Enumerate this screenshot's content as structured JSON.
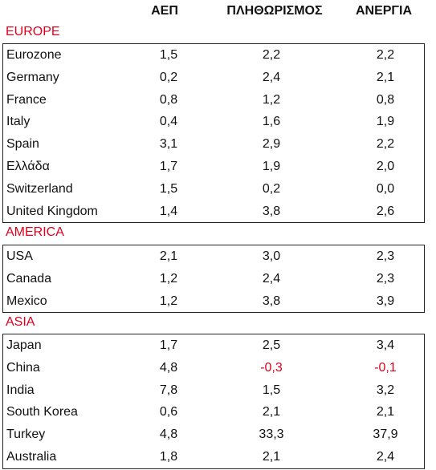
{
  "headers": [
    "ΑΕΠ",
    "ΠΛΗΘΩΡΙΣΜΟΣ",
    "ΑΝΕΡΓΙΑ"
  ],
  "colors": {
    "region_label": "#e0001b",
    "negative": "#e0001b",
    "border": "#222222"
  },
  "sections": [
    {
      "label": "EUROPE",
      "rows": [
        {
          "name": "Eurozone",
          "values": [
            "1,5",
            "2,2",
            "2,2"
          ]
        },
        {
          "name": "Germany",
          "values": [
            "0,2",
            "2,4",
            "2,1"
          ]
        },
        {
          "name": "France",
          "values": [
            "0,8",
            "1,2",
            "0,8"
          ]
        },
        {
          "name": "Italy",
          "values": [
            "0,4",
            "1,6",
            "1,9"
          ]
        },
        {
          "name": "Spain",
          "values": [
            "3,1",
            "2,9",
            "2,2"
          ]
        },
        {
          "name": "Ελλάδα",
          "values": [
            "1,7",
            "1,9",
            "2,0"
          ]
        },
        {
          "name": "Switzerland",
          "values": [
            "1,5",
            "0,2",
            "0,0"
          ]
        },
        {
          "name": "United Kingdom",
          "values": [
            "1,4",
            "3,8",
            "2,6"
          ]
        }
      ]
    },
    {
      "label": "AMERICA",
      "rows": [
        {
          "name": "USA",
          "values": [
            "2,1",
            "3,0",
            "2,3"
          ]
        },
        {
          "name": "Canada",
          "values": [
            "1,2",
            "2,4",
            "2,3"
          ]
        },
        {
          "name": "Mexico",
          "values": [
            "1,2",
            "3,8",
            "3,9"
          ]
        }
      ]
    },
    {
      "label": "ASIA",
      "rows": [
        {
          "name": "Japan",
          "values": [
            "1,7",
            "2,5",
            "3,4"
          ]
        },
        {
          "name": "China",
          "values": [
            "4,8",
            "-0,3",
            "-0,1"
          ]
        },
        {
          "name": "India",
          "values": [
            "7,8",
            "1,5",
            "3,2"
          ]
        },
        {
          "name": "South Korea",
          "values": [
            "0,6",
            "2,1",
            "2,1"
          ]
        },
        {
          "name": "Turkey",
          "values": [
            "4,8",
            "33,3",
            "37,9"
          ]
        },
        {
          "name": "Australia",
          "values": [
            "1,8",
            "2,1",
            "2,4"
          ]
        }
      ]
    }
  ]
}
